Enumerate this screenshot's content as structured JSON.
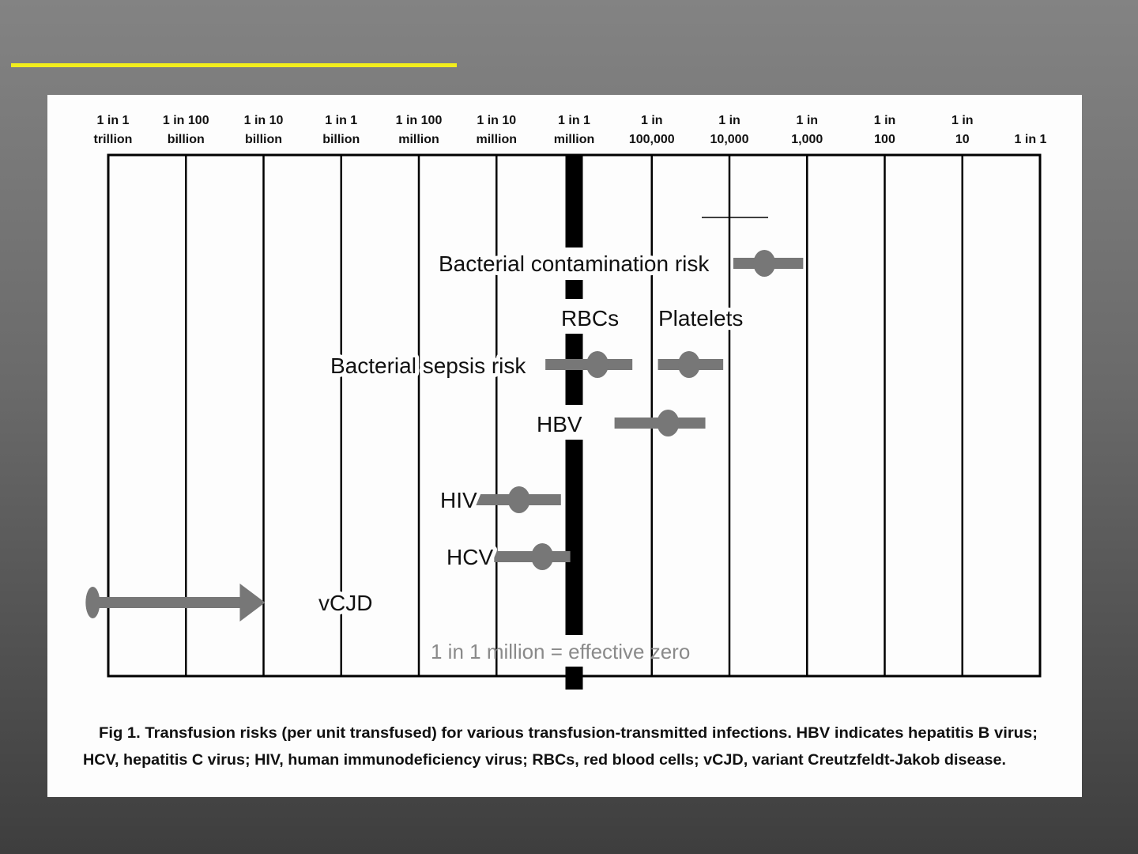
{
  "chart_data": {
    "type": "range-dot",
    "title": "",
    "xscale": "log10 risk per unit transfused",
    "xlim": [
      -12,
      0
    ],
    "x_ticks": [
      {
        "value": -12,
        "line1": "1 in 1",
        "line2": "trillion"
      },
      {
        "value": -11,
        "line1": "1 in 100",
        "line2": "billion"
      },
      {
        "value": -10,
        "line1": "1 in 10",
        "line2": "billion"
      },
      {
        "value": -9,
        "line1": "1 in 1",
        "line2": "billion"
      },
      {
        "value": -8,
        "line1": "1 in 100",
        "line2": "million"
      },
      {
        "value": -7,
        "line1": "1 in 10",
        "line2": "million"
      },
      {
        "value": -6,
        "line1": "1 in 1",
        "line2": "million"
      },
      {
        "value": -5,
        "line1": "1 in",
        "line2": "100,000"
      },
      {
        "value": -4,
        "line1": "1 in",
        "line2": "10,000"
      },
      {
        "value": -3,
        "line1": "1 in",
        "line2": "1,000"
      },
      {
        "value": -2,
        "line1": "1 in",
        "line2": "100"
      },
      {
        "value": -1,
        "line1": "1 in",
        "line2": "10"
      },
      {
        "value": 0,
        "line1": "",
        "line2": "1 in 1"
      }
    ],
    "series": [
      {
        "name": "Bacterial contamination risk",
        "low": -3.95,
        "high": -3.05,
        "point": -3.55
      },
      {
        "name": "Bacterial sepsis risk - RBCs",
        "low": -6.37,
        "high": -5.25,
        "point": -5.7
      },
      {
        "name": "Bacterial sepsis risk - Platelets",
        "low": -4.92,
        "high": -4.08,
        "point": -4.52
      },
      {
        "name": "HBV",
        "low": -5.48,
        "high": -4.31,
        "point": -4.79
      },
      {
        "name": "HIV",
        "low": -7.39,
        "high": -6.17,
        "point": -6.71
      },
      {
        "name": "HCV",
        "low": -7.03,
        "high": -6.05,
        "point": -6.41
      },
      {
        "name": "vCJD",
        "low": -12.2,
        "high": -9.98,
        "point": -12.2,
        "arrow": true
      }
    ],
    "reference_line": {
      "value": -6,
      "label": "1 in 1 million = effective zero"
    },
    "labels": {
      "contamination": "Bacterial contamination risk",
      "rbcs": "RBCs",
      "platelets": "Platelets",
      "sepsis": "Bacterial sepsis risk",
      "hbv": "HBV",
      "hiv": "HIV",
      "hcv": "HCV",
      "vcjd": "vCJD"
    },
    "caption": {
      "line1": "Fig 1.  Transfusion risks (per unit transfused) for various transfusion-transmitted infections. HBV indicates hepatitis B virus;",
      "line2": "HCV, hepatitis C virus; HIV, human immunodeficiency virus; RBCs, red blood cells; vCJD, variant Creutzfeldt-Jakob disease."
    },
    "colors": {
      "bar": "#777777",
      "accent": "#f2ee1c",
      "zero_line": "#000000"
    }
  }
}
